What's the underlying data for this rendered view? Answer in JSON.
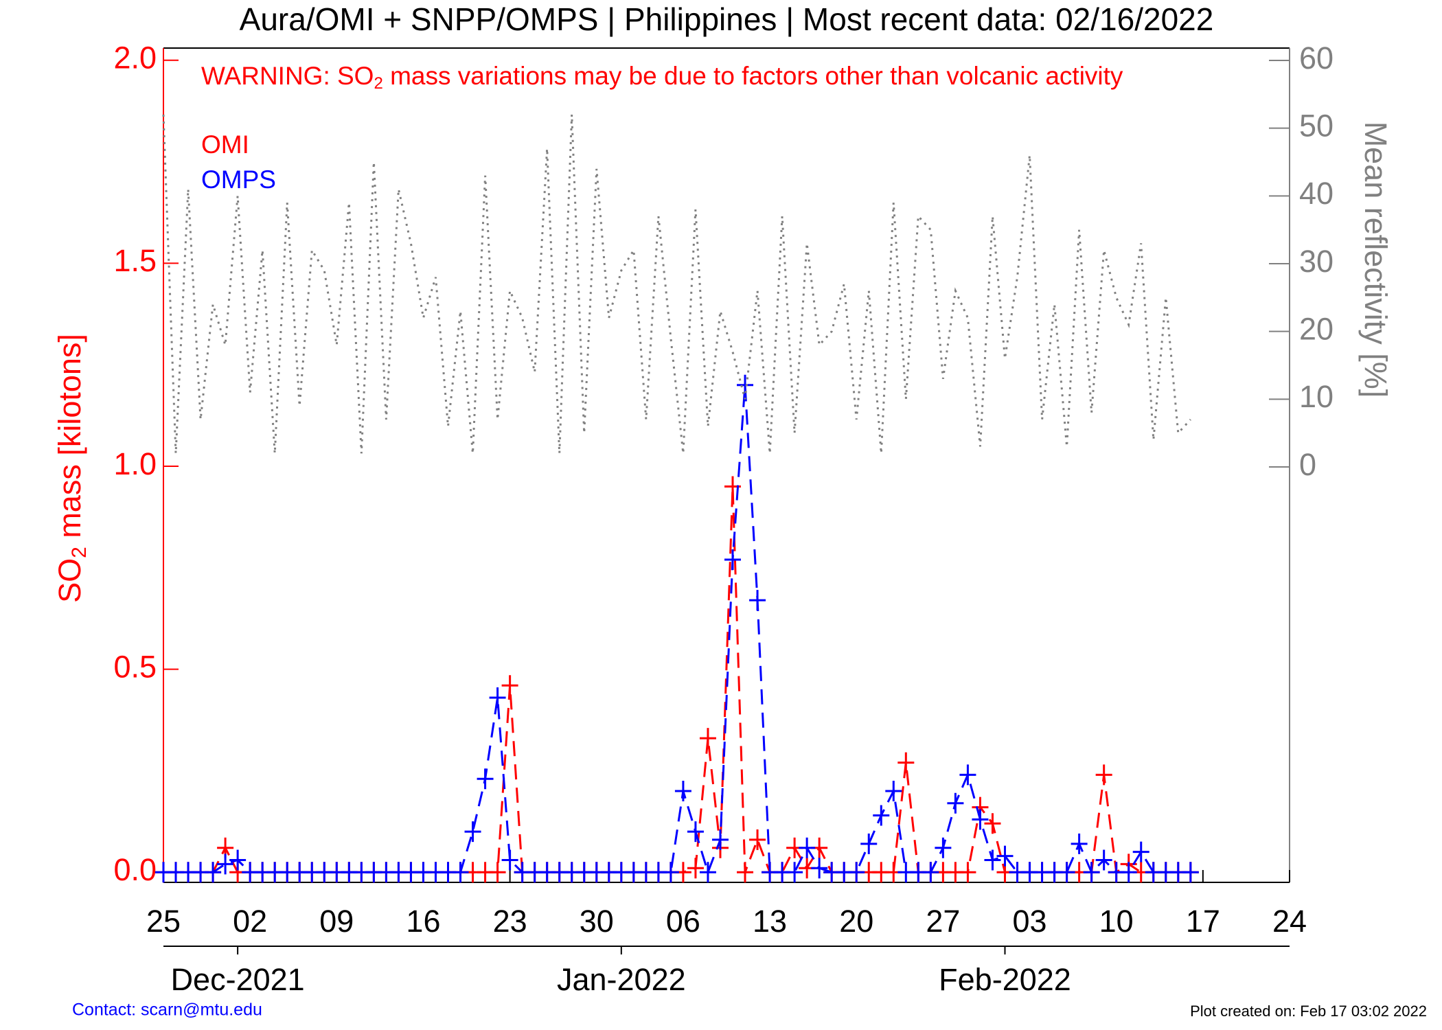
{
  "chart_data": {
    "type": "line",
    "title": "Aura/OMI + SNPP/OMPS | Philippines | Most recent data: 02/16/2022",
    "warning": {
      "prefix": "WARNING: SO",
      "sub": "2",
      "suffix": " mass variations may be due to factors other than volcanic activity"
    },
    "y_label": {
      "prefix": "SO",
      "sub": "2",
      "suffix": " mass [kilotons]"
    },
    "y2_label": "Mean reflectivity [%]",
    "contact": "Contact: scarn@mtu.edu",
    "created": "Plot created on: Feb 17 03:02 2022",
    "x": [
      "2021-11-25",
      "2021-11-26",
      "2021-11-27",
      "2021-11-28",
      "2021-11-29",
      "2021-11-30",
      "2021-12-01",
      "2021-12-02",
      "2021-12-03",
      "2021-12-04",
      "2021-12-05",
      "2021-12-06",
      "2021-12-07",
      "2021-12-08",
      "2021-12-09",
      "2021-12-10",
      "2021-12-11",
      "2021-12-12",
      "2021-12-13",
      "2021-12-14",
      "2021-12-15",
      "2021-12-16",
      "2021-12-17",
      "2021-12-18",
      "2021-12-19",
      "2021-12-20",
      "2021-12-21",
      "2021-12-22",
      "2021-12-23",
      "2021-12-24",
      "2021-12-25",
      "2021-12-26",
      "2021-12-27",
      "2021-12-28",
      "2021-12-29",
      "2021-12-30",
      "2021-12-31",
      "2022-01-01",
      "2022-01-02",
      "2022-01-03",
      "2022-01-04",
      "2022-01-05",
      "2022-01-06",
      "2022-01-07",
      "2022-01-08",
      "2022-01-09",
      "2022-01-10",
      "2022-01-11",
      "2022-01-12",
      "2022-01-13",
      "2022-01-14",
      "2022-01-15",
      "2022-01-16",
      "2022-01-17",
      "2022-01-18",
      "2022-01-19",
      "2022-01-20",
      "2022-01-21",
      "2022-01-22",
      "2022-01-23",
      "2022-01-24",
      "2022-01-25",
      "2022-01-26",
      "2022-01-27",
      "2022-01-28",
      "2022-01-29",
      "2022-01-30",
      "2022-01-31",
      "2022-02-01",
      "2022-02-02",
      "2022-02-03",
      "2022-02-04",
      "2022-02-05",
      "2022-02-06",
      "2022-02-07",
      "2022-02-08",
      "2022-02-09",
      "2022-02-10",
      "2022-02-11",
      "2022-02-12",
      "2022-02-13",
      "2022-02-14",
      "2022-02-15",
      "2022-02-16"
    ],
    "series": [
      {
        "name": "OMI",
        "color": "#ff0000",
        "style": "dashed",
        "marker": "plus",
        "values": [
          0,
          0,
          0,
          0,
          0,
          0.06,
          0,
          0,
          0,
          0,
          0,
          0,
          0,
          0,
          0,
          0,
          0,
          0,
          0,
          0,
          0,
          0,
          0,
          0,
          0,
          0,
          0,
          0,
          0.46,
          0,
          0,
          0,
          0,
          0,
          0,
          0,
          0,
          0,
          0,
          0,
          0,
          0,
          0,
          0.01,
          0.33,
          0.06,
          0.95,
          0,
          0.08,
          0,
          0,
          0.06,
          0.01,
          0.06,
          0,
          0,
          0,
          0,
          0,
          0,
          0.27,
          0,
          0,
          0,
          0,
          0,
          0.16,
          0.12,
          0,
          0,
          0,
          0,
          0,
          0,
          0,
          0,
          0.24,
          0,
          0.02,
          0,
          0,
          0,
          0,
          0
        ]
      },
      {
        "name": "OMPS",
        "color": "#0000ff",
        "style": "dashed",
        "marker": "plus",
        "values": [
          0,
          0,
          0,
          0,
          0,
          0.02,
          0.03,
          0,
          0,
          0,
          0,
          0,
          0,
          0,
          0,
          0,
          0,
          0,
          0,
          0,
          0,
          0,
          0,
          0,
          0,
          0.1,
          0.23,
          0.43,
          0.03,
          0,
          0,
          0,
          0,
          0,
          0,
          0,
          0,
          0,
          0,
          0,
          0,
          0,
          0.2,
          0.1,
          0,
          0.08,
          0.77,
          1.2,
          0.67,
          0,
          0,
          0,
          0.06,
          0.01,
          0,
          0,
          0,
          0.07,
          0.14,
          0.2,
          0,
          0,
          0,
          0.06,
          0.17,
          0.24,
          0.13,
          0.03,
          0.04,
          0,
          0,
          0,
          0,
          0,
          0.07,
          0,
          0.03,
          0,
          0,
          0.05,
          0,
          0,
          0,
          0
        ]
      },
      {
        "axis": "y2",
        "color": "#808080",
        "style": "dotted",
        "values": [
          52,
          2,
          41,
          7,
          24,
          18,
          40,
          11,
          32,
          2,
          39,
          9,
          32,
          29,
          18,
          39,
          2,
          45,
          7,
          41,
          33,
          22,
          28,
          6,
          23,
          2,
          43,
          7,
          26,
          22,
          14,
          47,
          2,
          52,
          5,
          44,
          22,
          29,
          32,
          7,
          37,
          19,
          2,
          38,
          6,
          23,
          17,
          10,
          26,
          2,
          37,
          5,
          33,
          18,
          20,
          27,
          7,
          26,
          2,
          39,
          10,
          37,
          35,
          13,
          26,
          22,
          3,
          37,
          16,
          28,
          46,
          7,
          24,
          3,
          35,
          8,
          32,
          25,
          21,
          33,
          4,
          25,
          5,
          7
        ]
      }
    ],
    "xlim": [
      "2021-11-25",
      "2022-02-24"
    ],
    "xticks": [
      {
        "value": "2021-11-25",
        "label": "25"
      },
      {
        "value": "2021-12-02",
        "label": "02"
      },
      {
        "value": "2021-12-09",
        "label": "09"
      },
      {
        "value": "2021-12-16",
        "label": "16"
      },
      {
        "value": "2021-12-23",
        "label": "23"
      },
      {
        "value": "2021-12-30",
        "label": "30"
      },
      {
        "value": "2022-01-06",
        "label": "06"
      },
      {
        "value": "2022-01-13",
        "label": "13"
      },
      {
        "value": "2022-01-20",
        "label": "20"
      },
      {
        "value": "2022-01-27",
        "label": "27"
      },
      {
        "value": "2022-02-03",
        "label": "03"
      },
      {
        "value": "2022-02-10",
        "label": "10"
      },
      {
        "value": "2022-02-17",
        "label": "17"
      },
      {
        "value": "2022-02-24",
        "label": "24"
      }
    ],
    "month_ticks": [
      {
        "value": "2021-12-01",
        "label": "Dec-2021"
      },
      {
        "value": "2022-01-01",
        "label": "Jan-2022"
      },
      {
        "value": "2022-02-01",
        "label": "Feb-2022"
      }
    ],
    "ylim": [
      -0.025,
      2.03
    ],
    "yticks": [
      {
        "value": 0,
        "label": "0.0"
      },
      {
        "value": 0.5,
        "label": "0.5"
      },
      {
        "value": 1,
        "label": "1.0"
      },
      {
        "value": 1.5,
        "label": "1.5"
      },
      {
        "value": 2,
        "label": "2.0"
      }
    ],
    "y2lim": [
      0,
      60
    ],
    "y2ticks": [
      0,
      10,
      20,
      30,
      40,
      50,
      60
    ],
    "y_color": "#ff0000",
    "y2_color": "#808080"
  }
}
